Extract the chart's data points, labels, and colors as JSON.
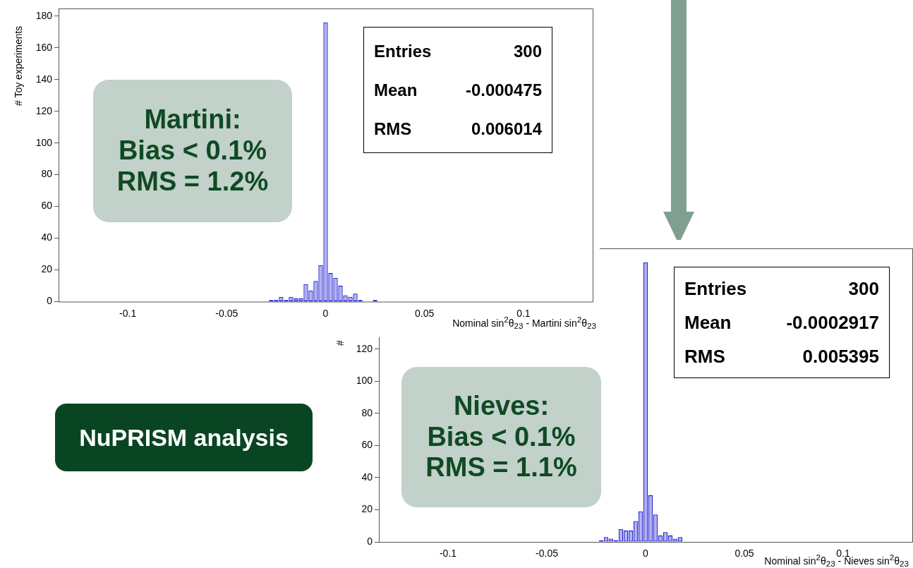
{
  "chart_data": [
    {
      "type": "histogram",
      "bins": [
        -0.02875,
        -0.02625,
        -0.02375,
        -0.02125,
        -0.01875,
        -0.01625,
        -0.01375,
        -0.01125,
        -0.00875,
        -0.00625,
        -0.00375,
        -0.00125,
        0.00125,
        0.00375,
        0.00625,
        0.00875,
        0.01125,
        0.01375,
        0.01625,
        0.01875,
        0.02125,
        0.02375,
        0.02625
      ],
      "values": [
        1,
        1,
        3,
        1,
        3,
        2,
        2,
        11,
        7,
        13,
        23,
        176,
        18,
        15,
        10,
        4,
        3,
        5,
        1,
        0,
        0,
        1
      ],
      "color": "#0000cc",
      "xlim": [
        -0.135,
        0.135
      ],
      "xticks": [
        -0.1,
        -0.05,
        0,
        0.05,
        0.1
      ],
      "ylim": [
        0,
        184.8
      ],
      "yticks": [
        0,
        20,
        40,
        60,
        80,
        100,
        120,
        140,
        160,
        180
      ],
      "xlabel": "Nominal sin$^{2}$θ$_{23}$ - Martini sin$^{2}$θ$_{23}$",
      "ylabel": "# Toy experiments",
      "annotations": [
        "Entries",
        "300",
        "Mean",
        "-0.000475",
        "RMS",
        "0.006014",
        "Martini:\nBias < 0.1%\nRMS = 1.2%",
        "NuPRISM analysis"
      ]
    },
    {
      "type": "histogram",
      "bins": [
        -0.02375,
        -0.02125,
        -0.01875,
        -0.01625,
        -0.01375,
        -0.01125,
        -0.00875,
        -0.00625,
        -0.00375,
        -0.00125,
        0.00125,
        0.00375,
        0.00625,
        0.00875,
        0.01125,
        0.01375,
        0.01625,
        0.01875
      ],
      "values": [
        1,
        3,
        2,
        1,
        8,
        7,
        7,
        13,
        19,
        174,
        29,
        17,
        4,
        6,
        4,
        2,
        3
      ],
      "color": "#0000cc",
      "xlim": [
        -0.135,
        0.135
      ],
      "xticks": [
        -0.1,
        -0.05,
        0,
        0.05,
        0.1
      ],
      "ylim": [
        0,
        182.7
      ],
      "yticks": [
        0,
        20,
        40,
        60,
        80,
        100,
        120
      ],
      "xlabel": "Nominal sin$^{2}$θ$_{23}$ - Nieves sin$^{2}$θ$_{23}$",
      "ylabel": "#",
      "annotations": [
        "Entries",
        "300",
        "Mean",
        "-0.0002917",
        "RMS",
        "0.005395",
        "Nieves:\nBias < 0.1%\nRMS = 1.1%"
      ]
    }
  ]
}
